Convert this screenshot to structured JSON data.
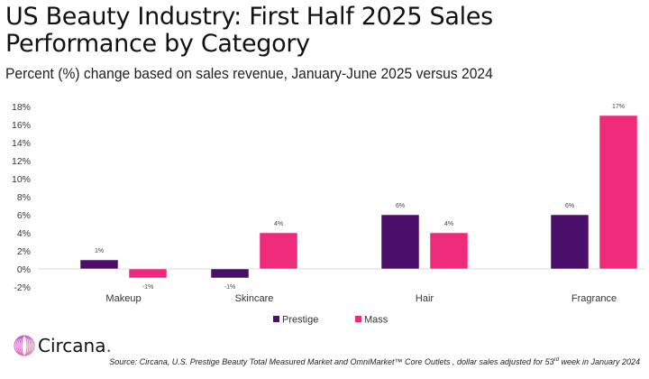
{
  "header": {
    "title": "US Beauty Industry: First Half 2025 Sales Performance by Category",
    "subtitle": "Percent (%) change based on sales revenue, January-June 2025 versus 2024"
  },
  "chart_data": {
    "type": "bar",
    "title": "US Beauty Industry: First Half 2025 Sales Performance by Category",
    "subtitle": "Percent (%) change based on sales revenue, January-June 2025 versus 2024",
    "xlabel": "",
    "ylabel": "",
    "categories": [
      "Makeup",
      "Skincare",
      "Hair",
      "Fragrance"
    ],
    "series": [
      {
        "name": "Prestige",
        "color": "#4a0f6a",
        "values": [
          1,
          -1,
          6,
          6
        ],
        "labels": [
          "1%",
          "-1%",
          "6%",
          "6%"
        ]
      },
      {
        "name": "Mass",
        "color": "#ee2a7b",
        "values": [
          -1,
          4,
          4,
          17
        ],
        "labels": [
          "-1%",
          "4%",
          "4%",
          "17%"
        ]
      }
    ],
    "ylim": [
      -2,
      18
    ],
    "yticks": [
      -2,
      0,
      2,
      4,
      6,
      8,
      10,
      12,
      14,
      16,
      18
    ],
    "ytick_labels": [
      "-2%",
      "0%",
      "2%",
      "4%",
      "6%",
      "8%",
      "10%",
      "12%",
      "14%",
      "16%",
      "18%"
    ],
    "grid": false,
    "legend": "bottom-center"
  },
  "footer": {
    "logo_text": "Circana",
    "logo_dot": ".",
    "source_prefix": "Source: Circana, U.S. Prestige Beauty Total Measured Market and OmniMarket™ Core Outlets , dollar sales adjusted for 53",
    "source_sup": "rd",
    "source_suffix": " week in January 2024"
  }
}
